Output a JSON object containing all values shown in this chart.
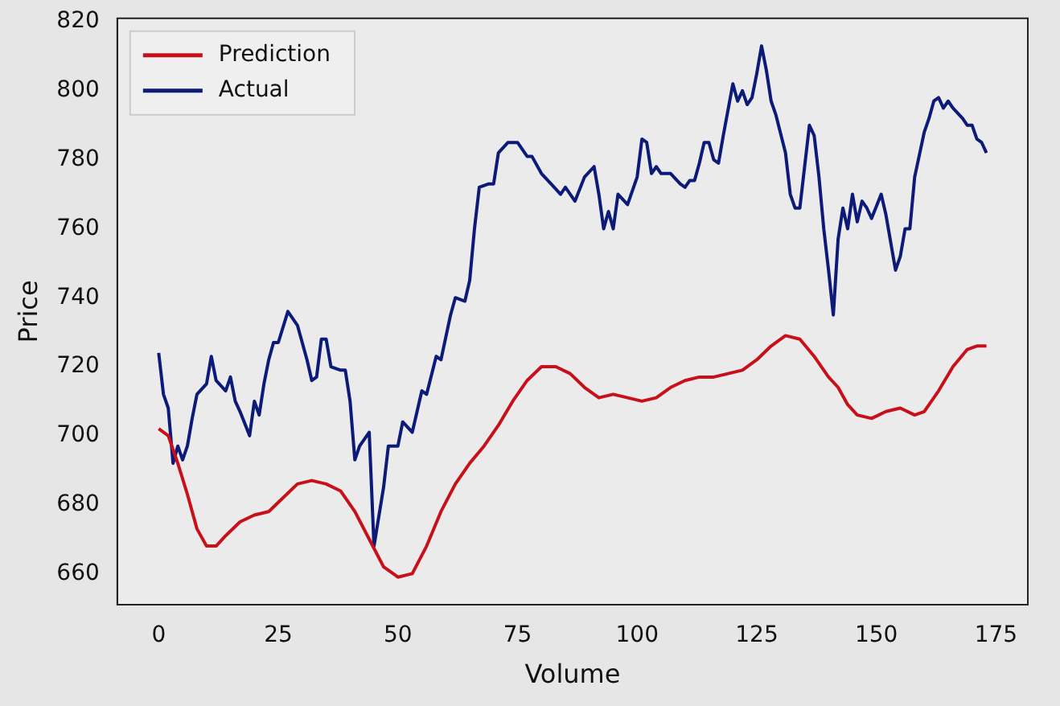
{
  "chart_data": {
    "type": "line",
    "xlabel": "Volume",
    "ylabel": "Price",
    "xlim": [
      -8.65,
      181.65
    ],
    "ylim": [
      651,
      821
    ],
    "xticks": [
      0,
      25,
      50,
      75,
      100,
      125,
      150,
      175
    ],
    "yticks": [
      660,
      680,
      700,
      720,
      740,
      760,
      780,
      800,
      820
    ],
    "grid": false,
    "legend": "top left",
    "marker": "none",
    "line_style": "solid",
    "series": [
      {
        "name": "Prediction",
        "color": "#c8101a",
        "x": [
          0,
          2,
          4,
          6,
          8,
          10,
          12,
          14,
          17,
          20,
          23,
          26,
          29,
          32,
          35,
          38,
          41,
          44,
          47,
          50,
          53,
          56,
          59,
          62,
          65,
          68,
          71,
          74,
          77,
          80,
          83,
          86,
          89,
          92,
          95,
          98,
          101,
          104,
          107,
          110,
          113,
          116,
          119,
          122,
          125,
          128,
          131,
          134,
          137,
          140,
          142,
          144,
          146,
          149,
          152,
          155,
          158,
          160,
          163,
          166,
          169,
          171,
          173
        ],
        "values": [
          702,
          700,
          692,
          683,
          673,
          668,
          668,
          671,
          675,
          677,
          678,
          682,
          686,
          687,
          686,
          684,
          678,
          670,
          662,
          659,
          660,
          668,
          678,
          686,
          692,
          697,
          703,
          710,
          716,
          720,
          720,
          718,
          714,
          711,
          712,
          711,
          710,
          711,
          714,
          716,
          717,
          717,
          718,
          719,
          722,
          726,
          729,
          728,
          723,
          717,
          714,
          709,
          706,
          705,
          707,
          708,
          706,
          707,
          713,
          720,
          725,
          726,
          726
        ]
      },
      {
        "name": "Actual",
        "color": "#0c1a78",
        "x": [
          0,
          1,
          2,
          3,
          4,
          5,
          6,
          7,
          8,
          10,
          11,
          12,
          14,
          15,
          16,
          17,
          19,
          20,
          21,
          22,
          23,
          24,
          25,
          27,
          29,
          31,
          32,
          33,
          34,
          35,
          36,
          38,
          39,
          40,
          41,
          42,
          44,
          45,
          47,
          48,
          50,
          51,
          53,
          55,
          56,
          58,
          59,
          61,
          62,
          64,
          65,
          66,
          67,
          69,
          70,
          71,
          73,
          75,
          77,
          78,
          80,
          82,
          84,
          85,
          87,
          89,
          91,
          92,
          93,
          94,
          95,
          96,
          98,
          100,
          101,
          102,
          103,
          104,
          105,
          107,
          109,
          110,
          111,
          112,
          113,
          114,
          115,
          116,
          117,
          118,
          120,
          121,
          122,
          123,
          124,
          125,
          126,
          127,
          128,
          129,
          131,
          132,
          133,
          134,
          136,
          137,
          138,
          139,
          140,
          141,
          142,
          143,
          144,
          145,
          146,
          147,
          148,
          149,
          151,
          152,
          154,
          155,
          156,
          157,
          158,
          160,
          161,
          162,
          163,
          164,
          165,
          166,
          168,
          169,
          170,
          171,
          172,
          173
        ],
        "values": [
          724,
          712,
          708,
          692,
          697,
          693,
          697,
          705,
          712,
          715,
          723,
          716,
          713,
          717,
          710,
          707,
          700,
          710,
          706,
          715,
          722,
          727,
          727,
          736,
          732,
          722,
          716,
          717,
          728,
          728,
          720,
          719,
          719,
          710,
          693,
          697,
          701,
          668,
          685,
          697,
          697,
          704,
          701,
          713,
          712,
          723,
          722,
          735,
          740,
          739,
          745,
          760,
          772,
          773,
          773,
          782,
          785,
          785,
          781,
          781,
          776,
          773,
          770,
          772,
          768,
          775,
          778,
          770,
          760,
          765,
          760,
          770,
          767,
          775,
          786,
          785,
          776,
          778,
          776,
          776,
          773,
          772,
          774,
          774,
          779,
          785,
          785,
          780,
          779,
          787,
          802,
          797,
          800,
          796,
          798,
          805,
          813,
          806,
          797,
          793,
          782,
          770,
          766,
          766,
          790,
          787,
          775,
          760,
          748,
          735,
          757,
          766,
          760,
          770,
          762,
          768,
          766,
          763,
          770,
          764,
          748,
          752,
          760,
          760,
          775,
          788,
          792,
          797,
          798,
          795,
          797,
          795,
          792,
          790,
          790,
          786,
          785,
          782
        ]
      }
    ]
  }
}
